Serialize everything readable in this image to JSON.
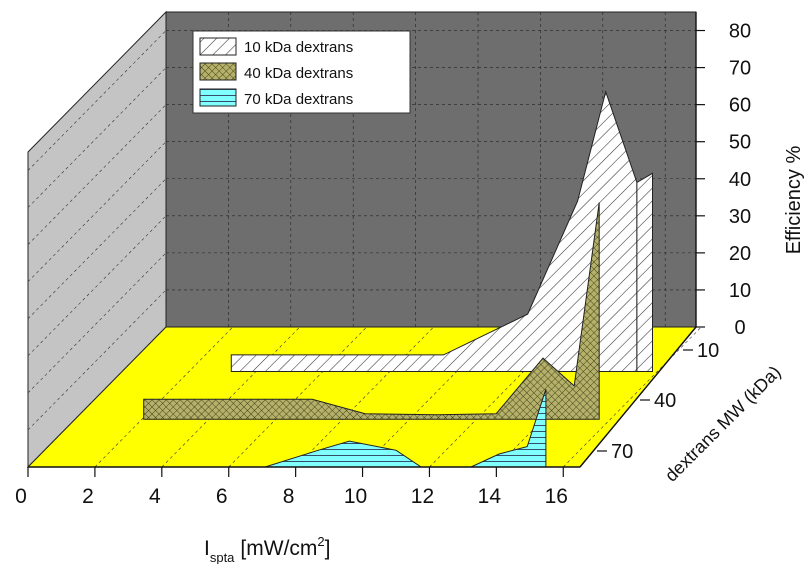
{
  "chart_data": {
    "type": "area",
    "subtype": "3d-waterfall",
    "title": "",
    "xlabel": "I",
    "xlabel_sub": "spta",
    "xlabel_unit": "[mW/cm",
    "xlabel_sup": "2",
    "xlabel_close": "]",
    "ylabel": "Efficiency %",
    "zlabel": "dextrans MW (kDa)",
    "xlim": [
      0,
      17
    ],
    "ylim": [
      0,
      85
    ],
    "x_ticks": [
      0,
      2,
      4,
      6,
      8,
      10,
      12,
      14,
      16
    ],
    "y_ticks": [
      0,
      10,
      20,
      30,
      40,
      50,
      60,
      70,
      80
    ],
    "z_ticks": [
      "10",
      "40",
      "70"
    ],
    "legend_position": "top-left",
    "grid": true,
    "series": [
      {
        "name": "10 kDa dextrans",
        "depth": 10,
        "fill": "hatch-diagonal",
        "color": "#ffffff",
        "x": [
          3.5,
          9.3,
          10.3,
          13.0,
          14.6,
          15.5,
          16.5
        ],
        "y": [
          4.5,
          4.5,
          4.5,
          15.5,
          46,
          75.5,
          51
        ],
        "tail_x": [
          16.5,
          17
        ],
        "tail_y": [
          51,
          53.5
        ]
      },
      {
        "name": "40 kDa dextrans",
        "depth": 40,
        "fill": "crosshatch",
        "color": "#b5b16b",
        "x": [
          2.2,
          7.6,
          9.3,
          11.6,
          13.5,
          15.0,
          16.0,
          16.8
        ],
        "y": [
          5.4,
          5.4,
          1.5,
          1.2,
          1.5,
          16.5,
          9.0,
          58.5
        ]
      },
      {
        "name": "70 kDa dextrans",
        "depth": 70,
        "fill": "hlines",
        "color": "#80ffff",
        "x": [
          0,
          7.6,
          9.3,
          10.3,
          11.8,
          12.6,
          14.2,
          15.1,
          16.0,
          16.6
        ],
        "y": [
          0,
          0,
          4.5,
          7.0,
          4.5,
          0,
          0,
          3.5,
          5.5,
          21.0
        ]
      }
    ]
  }
}
